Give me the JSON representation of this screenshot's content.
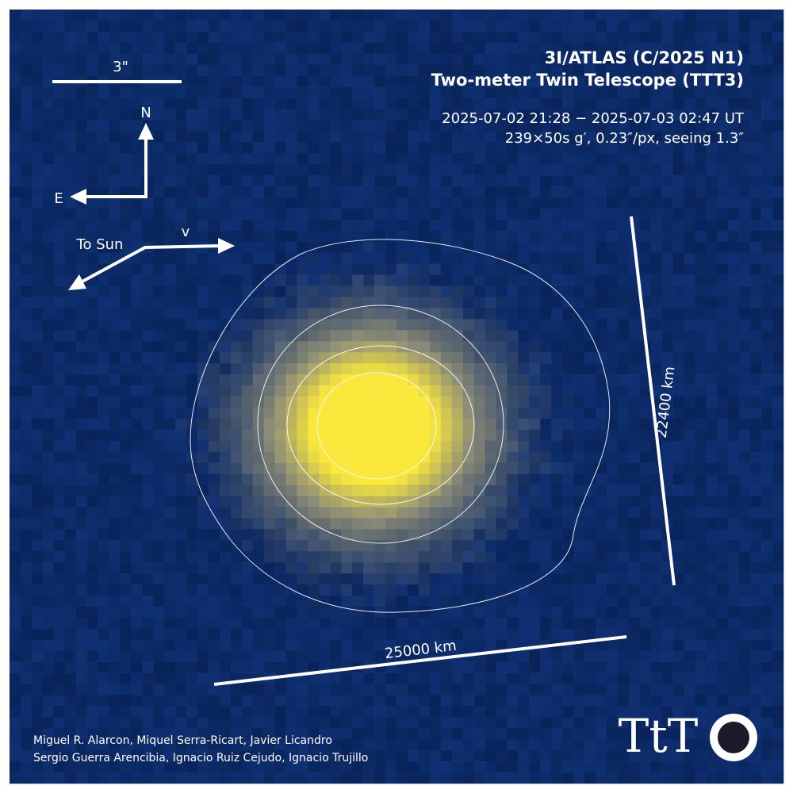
{
  "title": "3I/ATLAS (C/2025 N1)",
  "subtitle": "Two-meter Twin Telescope (TTT3)",
  "observation": {
    "time": "2025-07-02 21:28 − 2025-07-03 02:47 UT",
    "details": "239×50s g′, 0.23″/px, seeing 1.3″"
  },
  "scale_bar": {
    "label": "3\""
  },
  "compass": {
    "north": "N",
    "east": "E"
  },
  "directions": {
    "sun": "To Sun",
    "velocity": "v"
  },
  "dimensions": {
    "vertical": "22400 km",
    "horizontal": "25000 km"
  },
  "credits": [
    "Miguel R. Alarcon, Miquel Serra-Ricart, Javier Licandro",
    "Sergio Guerra Arencibia, Ignacio Ruiz Cejudo, Ignacio Trujillo"
  ],
  "logo": "TtT"
}
